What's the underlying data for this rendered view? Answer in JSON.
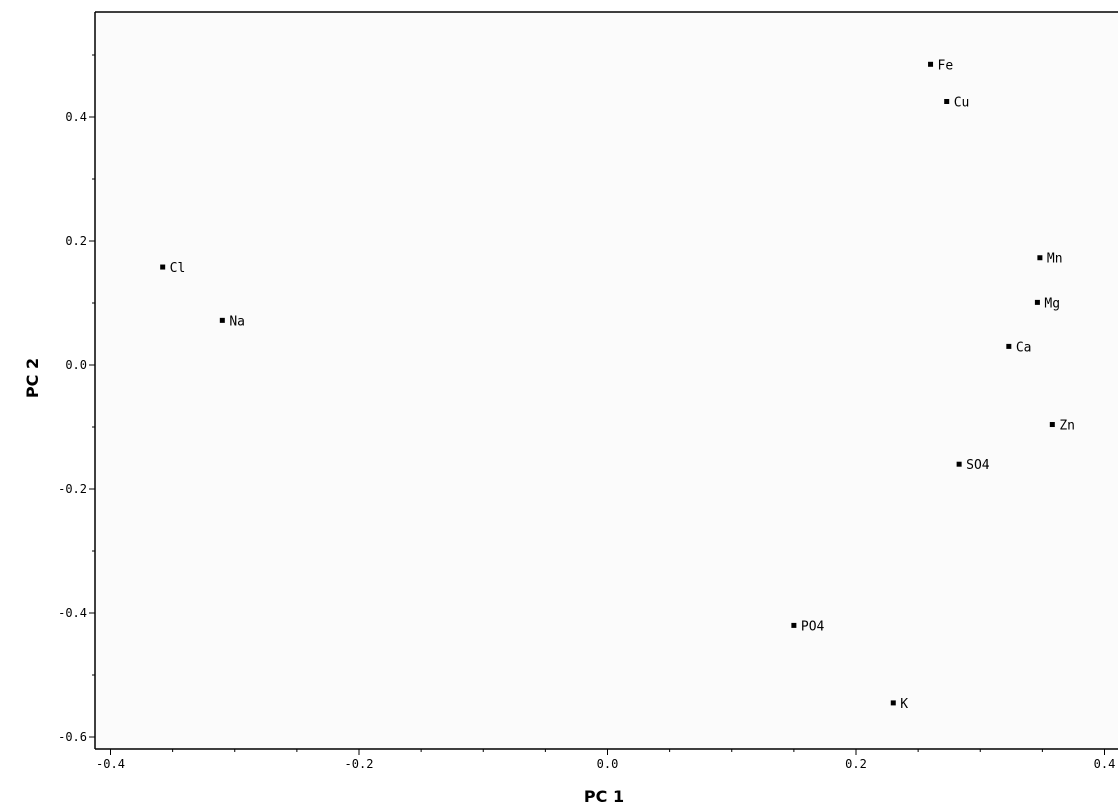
{
  "chart_data": {
    "type": "scatter",
    "title": "",
    "xlabel": "PC 1",
    "ylabel": "PC 2",
    "xlim": [
      -0.4,
      0.4
    ],
    "ylim": [
      -0.6,
      0.5
    ],
    "x_ticks": [
      {
        "value": -0.4,
        "label": "-0.4"
      },
      {
        "value": -0.2,
        "label": "-0.2"
      },
      {
        "value": 0.0,
        "label": "0.0"
      },
      {
        "value": 0.2,
        "label": "0.2"
      },
      {
        "value": 0.4,
        "label": "0.4"
      }
    ],
    "y_ticks": [
      {
        "value": 0.4,
        "label": "0.4"
      },
      {
        "value": 0.2,
        "label": "0.2"
      },
      {
        "value": 0.0,
        "label": "0.0"
      },
      {
        "value": -0.2,
        "label": "-0.2"
      },
      {
        "value": -0.4,
        "label": "-0.4"
      },
      {
        "value": -0.6,
        "label": "-0.6"
      }
    ],
    "grid": false,
    "colors": {
      "background": "#fbfbfb",
      "axis": "#000000",
      "marker": "#000000"
    },
    "points": [
      {
        "label": "Fe",
        "x": 0.26,
        "y": 0.485
      },
      {
        "label": "Cu",
        "x": 0.273,
        "y": 0.425
      },
      {
        "label": "Mn",
        "x": 0.348,
        "y": 0.173
      },
      {
        "label": "Mg",
        "x": 0.346,
        "y": 0.101
      },
      {
        "label": "Ca",
        "x": 0.323,
        "y": 0.03
      },
      {
        "label": "Zn",
        "x": 0.358,
        "y": -0.096
      },
      {
        "label": "SO4",
        "x": 0.283,
        "y": -0.16
      },
      {
        "label": "Cl",
        "x": -0.358,
        "y": 0.158
      },
      {
        "label": "Na",
        "x": -0.31,
        "y": 0.072
      },
      {
        "label": "PO4",
        "x": 0.15,
        "y": -0.42
      },
      {
        "label": "K",
        "x": 0.23,
        "y": -0.545
      }
    ]
  }
}
